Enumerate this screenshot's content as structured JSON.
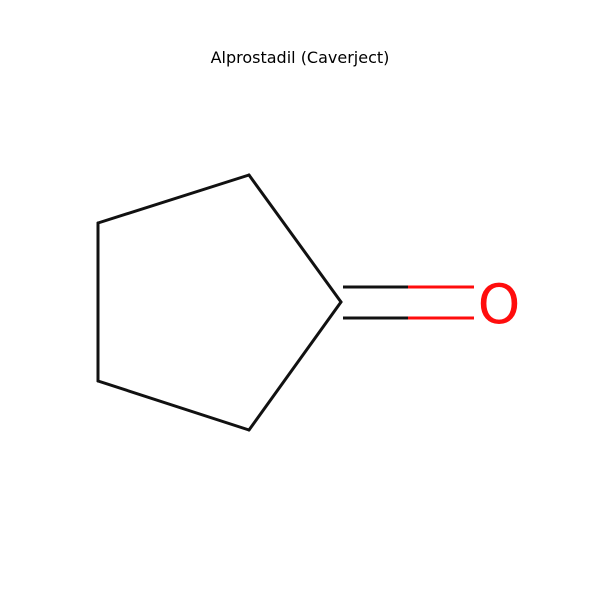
{
  "title": "Alprostadil (Caverject)",
  "molecule": {
    "bond_color": "#111111",
    "heteroatom_color": "#ff0d0d",
    "atoms": [
      {
        "id": "c1",
        "element": "C"
      },
      {
        "id": "c2",
        "element": "C"
      },
      {
        "id": "c3",
        "element": "C"
      },
      {
        "id": "c4",
        "element": "C"
      },
      {
        "id": "c5",
        "element": "C"
      },
      {
        "id": "o1",
        "element": "O",
        "label": "O"
      }
    ],
    "bonds": [
      {
        "from": "c1",
        "to": "c2",
        "order": 1
      },
      {
        "from": "c2",
        "to": "c3",
        "order": 1
      },
      {
        "from": "c3",
        "to": "c4",
        "order": 1
      },
      {
        "from": "c4",
        "to": "c5",
        "order": 1
      },
      {
        "from": "c5",
        "to": "c1",
        "order": 1
      },
      {
        "from": "c1",
        "to": "o1",
        "order": 2
      }
    ]
  }
}
